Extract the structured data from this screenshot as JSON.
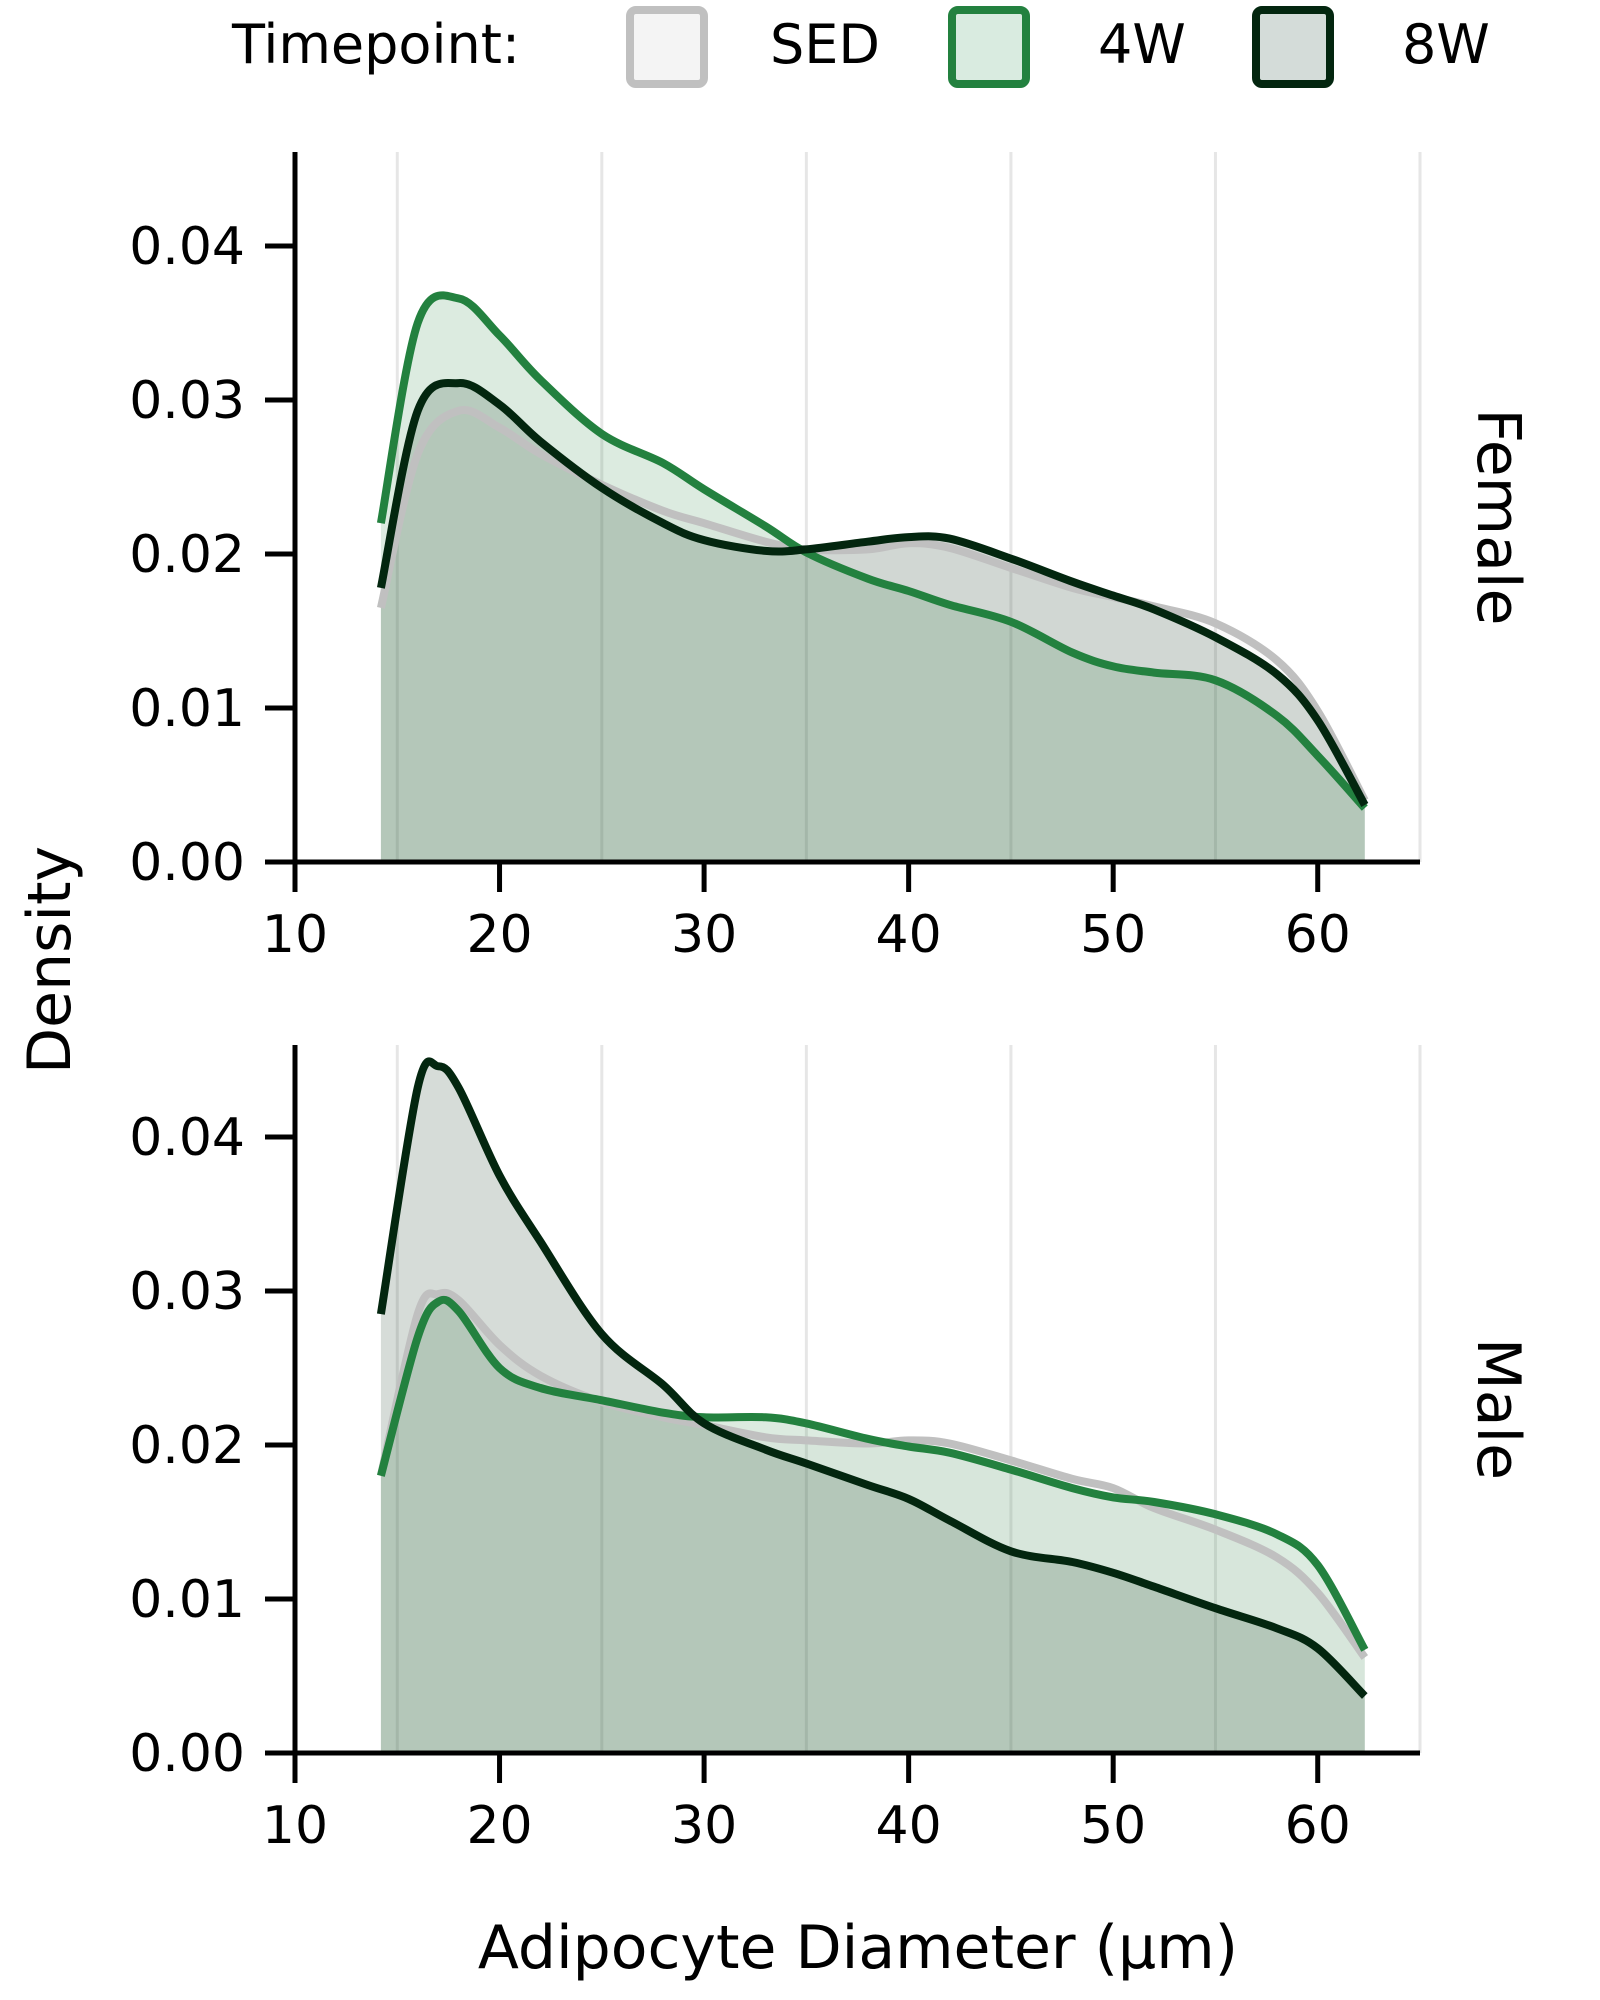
{
  "chart_data": {
    "type": "area",
    "legend": {
      "title": "Timepoint:",
      "placement": "top-center",
      "entries": [
        "SED",
        "4W",
        "8W"
      ]
    },
    "series_styles": {
      "SED": {
        "line": "#c0c0c0",
        "fill": "#f4f4f4"
      },
      "4W": {
        "line": "#23813f",
        "fill": "#d9ebe0"
      },
      "8W": {
        "line": "#03260f",
        "fill": "#d4dcd9"
      }
    },
    "overlap_fill": "#b4c9bd",
    "xlabel": "Adipocyte Diameter (μm)",
    "ylabel": "Density",
    "xlim": [
      10,
      65
    ],
    "ylim": [
      0,
      0.045
    ],
    "x_ticks": [
      "10",
      "20",
      "30",
      "40",
      "50",
      "60"
    ],
    "y_ticks": [
      "0.00",
      "0.01",
      "0.02",
      "0.03",
      "0.04"
    ],
    "x_tick_values": [
      10,
      20,
      30,
      40,
      50,
      60
    ],
    "y_tick_values": [
      0,
      0.01,
      0.02,
      0.03,
      0.04
    ],
    "vertical_grid_at": [
      15,
      25,
      35,
      45,
      55,
      65
    ],
    "grid": "vertical",
    "facets": [
      {
        "label": "Female",
        "x": [
          14.2,
          16,
          18,
          20,
          22,
          25,
          28,
          30,
          33,
          35,
          38,
          40,
          42,
          45,
          48,
          50,
          52,
          55,
          58,
          60,
          62.3
        ],
        "series": [
          {
            "name": "SED",
            "values": [
              0.0165,
              0.0265,
              0.0293,
              0.0282,
              0.0265,
              0.0245,
              0.0228,
              0.022,
              0.0208,
              0.0203,
              0.0203,
              0.0207,
              0.0204,
              0.0191,
              0.0178,
              0.0172,
              0.0166,
              0.0155,
              0.0131,
              0.0098,
              0.004
            ]
          },
          {
            "name": "4W",
            "values": [
              0.022,
              0.035,
              0.0366,
              0.0342,
              0.0313,
              0.0278,
              0.0259,
              0.0242,
              0.0218,
              0.0201,
              0.0184,
              0.0176,
              0.0167,
              0.0156,
              0.0136,
              0.0127,
              0.0123,
              0.0118,
              0.0095,
              0.0069,
              0.0035
            ]
          },
          {
            "name": "8W",
            "values": [
              0.0178,
              0.0293,
              0.0311,
              0.0297,
              0.0273,
              0.0243,
              0.022,
              0.0209,
              0.0202,
              0.0203,
              0.0208,
              0.0211,
              0.021,
              0.0197,
              0.0182,
              0.0173,
              0.0164,
              0.0146,
              0.0122,
              0.0092,
              0.0037
            ]
          }
        ]
      },
      {
        "label": "Male",
        "x": [
          14.2,
          16,
          17,
          18,
          20,
          22,
          25,
          28,
          30,
          33,
          35,
          38,
          40,
          42,
          45,
          48,
          50,
          52,
          55,
          58,
          60,
          62.3
        ],
        "series": [
          {
            "name": "SED",
            "values": [
              0.018,
              0.0285,
              0.0298,
              0.0294,
              0.0265,
              0.0245,
              0.0228,
              0.0218,
              0.0213,
              0.0205,
              0.0203,
              0.0201,
              0.0203,
              0.0201,
              0.019,
              0.0178,
              0.0172,
              0.0159,
              0.0145,
              0.0127,
              0.0104,
              0.0062
            ]
          },
          {
            "name": "4W",
            "values": [
              0.018,
              0.027,
              0.0293,
              0.0287,
              0.025,
              0.0237,
              0.0229,
              0.0221,
              0.0218,
              0.0218,
              0.0214,
              0.0204,
              0.0199,
              0.0195,
              0.0184,
              0.0172,
              0.0166,
              0.0163,
              0.0155,
              0.0142,
              0.0122,
              0.0067
            ]
          },
          {
            "name": "8W",
            "values": [
              0.0285,
              0.0432,
              0.0446,
              0.0432,
              0.0375,
              0.0332,
              0.0272,
              0.0239,
              0.0214,
              0.0197,
              0.0188,
              0.0174,
              0.0165,
              0.0151,
              0.0131,
              0.0124,
              0.0117,
              0.0108,
              0.0094,
              0.0081,
              0.0068,
              0.0037
            ]
          }
        ]
      }
    ]
  }
}
